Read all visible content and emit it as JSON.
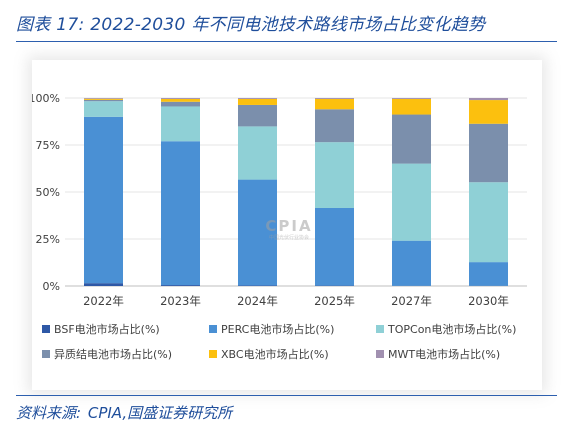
{
  "figure": {
    "title": "图表 17:  2022-2030 年不同电池技术路线市场占比变化趋势",
    "source_label": "资料来源:",
    "source_text": "CPIA,国盛证券研究所",
    "watermark_main": "CPIA",
    "watermark_sub": "中国光伏行业协会"
  },
  "colors": {
    "BSF": "#2e58a6",
    "PERC": "#4a90d4",
    "TOPCon": "#8fd0d6",
    "hetero": "#7b8fac",
    "XBC": "#fcc00e",
    "MWT": "#a190b0",
    "title": "#1f4e9b"
  },
  "chart_data": {
    "type": "bar",
    "stacked": true,
    "categories": [
      "2022年",
      "2023年",
      "2024年",
      "2025年",
      "2027年",
      "2030年"
    ],
    "ylim": [
      0,
      100
    ],
    "yticks": [
      "0%",
      "25%",
      "50%",
      "75%",
      "100%"
    ],
    "ytick_values": [
      0,
      25,
      50,
      75,
      100
    ],
    "grid": true,
    "legend_position": "bottom",
    "series": [
      {
        "name": "BSF电池市场占比(%)",
        "key": "BSF",
        "values": [
          1.5,
          0.5,
          0.3,
          0.2,
          0.1,
          0.1
        ]
      },
      {
        "name": "PERC电池市场占比(%)",
        "key": "PERC",
        "values": [
          88.5,
          76.5,
          56.3,
          41.3,
          24.0,
          12.6
        ]
      },
      {
        "name": "TOPCon电池市场占比(%)",
        "key": "TOPCon",
        "values": [
          8.3,
          18.5,
          28.3,
          35.0,
          41.0,
          42.5
        ]
      },
      {
        "name": "异质结电池市场占比(%)",
        "key": "hetero",
        "values": [
          0.7,
          2.5,
          11.4,
          17.5,
          26.1,
          31.1
        ]
      },
      {
        "name": "XBC电池市场占比(%)",
        "key": "XBC",
        "values": [
          0.6,
          1.5,
          3.2,
          5.5,
          8.3,
          12.6
        ]
      },
      {
        "name": "MWT电池市场占比(%)",
        "key": "MWT",
        "values": [
          0.4,
          0.5,
          0.5,
          0.5,
          0.5,
          1.1
        ]
      }
    ]
  }
}
